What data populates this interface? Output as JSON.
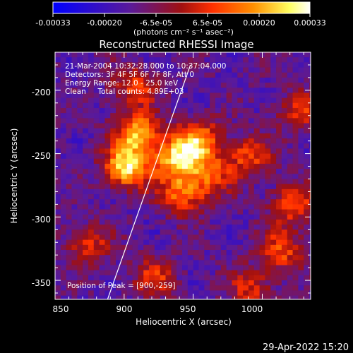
{
  "chart_data": {
    "type": "heatmap",
    "title": "Reconstructed RHESSI Image",
    "xlabel": "Heliocentric X (arcsec)",
    "ylabel": "Heliocentric Y (arcsec)",
    "xlim": [
      850,
      1035
    ],
    "ylim": [
      -365,
      -170
    ],
    "xticks": [
      850,
      900,
      950,
      1000
    ],
    "yticks": [
      -200,
      -250,
      -300,
      -350
    ],
    "colorbar": {
      "ticks": [
        "-0.00033",
        "-0.00020",
        "-6.5e-05",
        "6.5e-05",
        "0.00020",
        "0.00033"
      ],
      "unit_label": "(photons cm⁻² s⁻¹ asec⁻²)",
      "range": [
        -0.00033,
        0.00033
      ],
      "colormap": [
        "#0000ff",
        "#5a1a9a",
        "#a01010",
        "#ff3000",
        "#ff9000",
        "#ffff60",
        "#ffffff"
      ]
    },
    "annotations": [
      "21-Mar-2004 10:32:28.000 to 10:37:04.000",
      "Detectors: 3F 4F 5F 6F 7F 8F, Att 0",
      "Energy Range: 12.0 - 25.0 keV",
      "Clean     Total counts: 4.89E+03",
      "Position of Peak = [900,-259]"
    ],
    "limb_line": {
      "x": [
        888,
        948
      ],
      "y": [
        -365,
        -180
      ]
    },
    "peaks": [
      {
        "x": 900,
        "y": -259,
        "v": 1.0
      },
      {
        "x": 908,
        "y": -232,
        "v": 0.85
      },
      {
        "x": 935,
        "y": -252,
        "v": 0.85
      },
      {
        "x": 952,
        "y": -238,
        "v": 0.75
      },
      {
        "x": 940,
        "y": -280,
        "v": 0.65
      },
      {
        "x": 960,
        "y": -265,
        "v": 0.55
      },
      {
        "x": 988,
        "y": -250,
        "v": 0.55
      },
      {
        "x": 1020,
        "y": -288,
        "v": 0.55
      },
      {
        "x": 1012,
        "y": -325,
        "v": 0.55
      },
      {
        "x": 872,
        "y": -320,
        "v": 0.45
      },
      {
        "x": 920,
        "y": -345,
        "v": 0.45
      },
      {
        "x": 905,
        "y": -195,
        "v": 0.5
      },
      {
        "x": 1025,
        "y": -215,
        "v": 0.45
      },
      {
        "x": 990,
        "y": -355,
        "v": 0.45
      }
    ]
  },
  "footer": {
    "timestamp": "29-Apr-2022 15:20"
  }
}
